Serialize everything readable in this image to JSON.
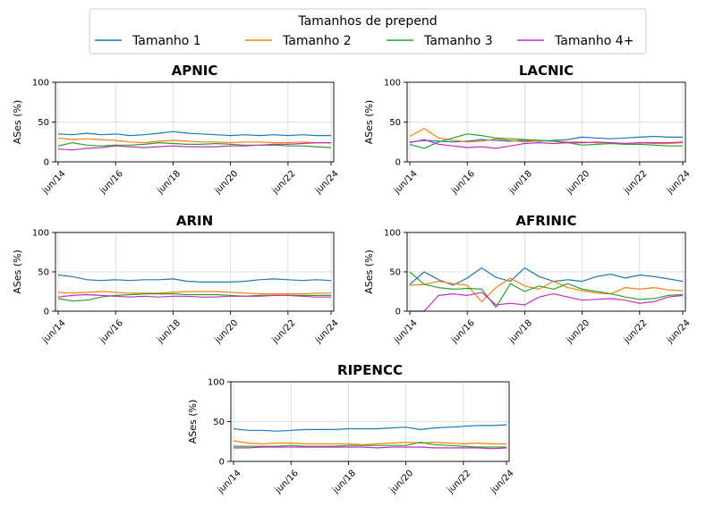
{
  "legend": {
    "title": "Tamanhos de prepend",
    "entries": [
      {
        "label": "Tamanho 1",
        "color": "#1f77b4"
      },
      {
        "label": "Tamanho 2",
        "color": "#ff7f0e"
      },
      {
        "label": "Tamanho 3",
        "color": "#2ca02c"
      },
      {
        "label": "Tamanho 4+",
        "color": "#c02fc0"
      }
    ]
  },
  "chart_data": [
    {
      "type": "line",
      "title": "APNIC",
      "ylabel": "ASes (%)",
      "xlabel": "",
      "ylim": [
        0,
        100
      ],
      "yticks": [
        0,
        50,
        100
      ],
      "xticks": [
        "jun/14",
        "jun/16",
        "jun/18",
        "jun/20",
        "jun/22",
        "jun/24"
      ],
      "grid": true,
      "x": [
        "jun/14",
        "dez/14",
        "jun/15",
        "dez/15",
        "jun/16",
        "dez/16",
        "jun/17",
        "dez/17",
        "jun/18",
        "dez/18",
        "jun/19",
        "dez/19",
        "jun/20",
        "dez/20",
        "jun/21",
        "dez/21",
        "jun/22",
        "dez/22",
        "jun/23",
        "dez/23"
      ],
      "series": [
        {
          "name": "Tamanho 1",
          "values": [
            35,
            34,
            36,
            34,
            35,
            33,
            34,
            36,
            38,
            36,
            35,
            34,
            33,
            34,
            33,
            34,
            33,
            34,
            33,
            33
          ]
        },
        {
          "name": "Tamanho 2",
          "values": [
            30,
            28,
            29,
            28,
            27,
            25,
            24,
            26,
            27,
            26,
            25,
            25,
            24,
            25,
            25,
            24,
            24,
            25,
            24,
            24
          ]
        },
        {
          "name": "Tamanho 3",
          "values": [
            20,
            24,
            21,
            20,
            21,
            21,
            22,
            24,
            23,
            22,
            22,
            23,
            22,
            21,
            21,
            21,
            20,
            20,
            19,
            18
          ]
        },
        {
          "name": "Tamanho 4+",
          "values": [
            16,
            15,
            17,
            18,
            20,
            19,
            18,
            19,
            20,
            19,
            19,
            19,
            20,
            20,
            21,
            22,
            22,
            23,
            24,
            24
          ]
        }
      ]
    },
    {
      "type": "line",
      "title": "LACNIC",
      "ylabel": "ASes (%)",
      "xlabel": "",
      "ylim": [
        0,
        100
      ],
      "yticks": [
        0,
        50,
        100
      ],
      "xticks": [
        "jun/14",
        "jun/16",
        "jun/18",
        "jun/20",
        "jun/22",
        "jun/24"
      ],
      "grid": true,
      "x": [
        "jun/14",
        "dez/14",
        "jun/15",
        "dez/15",
        "jun/16",
        "dez/16",
        "jun/17",
        "dez/17",
        "jun/18",
        "dez/18",
        "jun/19",
        "dez/19",
        "jun/20",
        "dez/20",
        "jun/21",
        "dez/21",
        "jun/22",
        "dez/22",
        "jun/23",
        "dez/23"
      ],
      "series": [
        {
          "name": "Tamanho 1",
          "values": [
            25,
            27,
            26,
            25,
            26,
            28,
            27,
            26,
            27,
            26,
            27,
            28,
            31,
            30,
            29,
            30,
            31,
            32,
            31,
            31
          ]
        },
        {
          "name": "Tamanho 2",
          "values": [
            32,
            42,
            30,
            27,
            25,
            26,
            29,
            27,
            25,
            27,
            26,
            25,
            25,
            24,
            24,
            23,
            24,
            23,
            23,
            24
          ]
        },
        {
          "name": "Tamanho 3",
          "values": [
            22,
            17,
            25,
            30,
            35,
            33,
            30,
            29,
            28,
            27,
            26,
            24,
            21,
            22,
            23,
            22,
            22,
            21,
            20,
            20
          ]
        },
        {
          "name": "Tamanho 4+",
          "values": [
            24,
            28,
            22,
            20,
            18,
            19,
            17,
            20,
            23,
            24,
            23,
            24,
            24,
            25,
            24,
            23,
            24,
            24,
            24,
            25
          ]
        }
      ]
    },
    {
      "type": "line",
      "title": "ARIN",
      "ylabel": "ASes (%)",
      "xlabel": "",
      "ylim": [
        0,
        100
      ],
      "yticks": [
        0,
        50,
        100
      ],
      "xticks": [
        "jun/14",
        "jun/16",
        "jun/18",
        "jun/20",
        "jun/22",
        "jun/24"
      ],
      "grid": true,
      "x": [
        "jun/14",
        "dez/14",
        "jun/15",
        "dez/15",
        "jun/16",
        "dez/16",
        "jun/17",
        "dez/17",
        "jun/18",
        "dez/18",
        "jun/19",
        "dez/19",
        "jun/20",
        "dez/20",
        "jun/21",
        "dez/21",
        "jun/22",
        "dez/22",
        "jun/23",
        "dez/23"
      ],
      "series": [
        {
          "name": "Tamanho 1",
          "values": [
            46,
            44,
            40,
            39,
            40,
            39,
            40,
            40,
            41,
            38,
            37,
            37,
            37,
            38,
            40,
            41,
            40,
            39,
            40,
            39
          ]
        },
        {
          "name": "Tamanho 2",
          "values": [
            24,
            23,
            24,
            25,
            24,
            23,
            23,
            23,
            24,
            25,
            25,
            25,
            24,
            23,
            22,
            22,
            22,
            22,
            23,
            23
          ]
        },
        {
          "name": "Tamanho 3",
          "values": [
            16,
            13,
            14,
            18,
            20,
            21,
            22,
            22,
            22,
            21,
            21,
            21,
            20,
            19,
            20,
            20,
            20,
            20,
            20,
            20
          ]
        },
        {
          "name": "Tamanho 4+",
          "values": [
            18,
            20,
            21,
            20,
            19,
            18,
            19,
            18,
            19,
            19,
            18,
            18,
            19,
            19,
            19,
            20,
            20,
            19,
            18,
            18
          ]
        }
      ]
    },
    {
      "type": "line",
      "title": "AFRINIC",
      "ylabel": "ASes (%)",
      "xlabel": "",
      "ylim": [
        0,
        100
      ],
      "yticks": [
        0,
        50,
        100
      ],
      "xticks": [
        "jun/14",
        "jun/16",
        "jun/18",
        "jun/20",
        "jun/22",
        "jun/24"
      ],
      "grid": true,
      "x": [
        "jun/14",
        "dez/14",
        "jun/15",
        "dez/15",
        "jun/16",
        "dez/16",
        "jun/17",
        "dez/17",
        "jun/18",
        "dez/18",
        "jun/19",
        "dez/19",
        "jun/20",
        "dez/20",
        "jun/21",
        "dez/21",
        "jun/22",
        "dez/22",
        "jun/23",
        "dez/23"
      ],
      "series": [
        {
          "name": "Tamanho 1",
          "values": [
            34,
            50,
            40,
            33,
            42,
            55,
            43,
            38,
            55,
            44,
            38,
            40,
            38,
            44,
            47,
            42,
            46,
            44,
            41,
            38
          ]
        },
        {
          "name": "Tamanho 2",
          "values": [
            33,
            34,
            38,
            35,
            33,
            12,
            30,
            42,
            32,
            28,
            38,
            30,
            26,
            23,
            22,
            30,
            28,
            30,
            27,
            26
          ]
        },
        {
          "name": "Tamanho 3",
          "values": [
            50,
            34,
            30,
            28,
            29,
            28,
            5,
            35,
            25,
            32,
            28,
            35,
            28,
            25,
            22,
            18,
            15,
            16,
            20,
            21
          ]
        },
        {
          "name": "Tamanho 4+",
          "values": [
            0,
            0,
            20,
            22,
            20,
            24,
            8,
            10,
            8,
            18,
            22,
            18,
            14,
            15,
            16,
            14,
            10,
            12,
            18,
            20
          ]
        }
      ]
    },
    {
      "type": "line",
      "title": "RIPENCC",
      "ylabel": "ASes (%)",
      "xlabel": "",
      "ylim": [
        0,
        100
      ],
      "yticks": [
        0,
        50,
        100
      ],
      "xticks": [
        "jun/14",
        "jun/16",
        "jun/18",
        "jun/20",
        "jun/22",
        "jun/24"
      ],
      "grid": true,
      "x": [
        "jun/14",
        "dez/14",
        "jun/15",
        "dez/15",
        "jun/16",
        "dez/16",
        "jun/17",
        "dez/17",
        "jun/18",
        "dez/18",
        "jun/19",
        "dez/19",
        "jun/20",
        "dez/20",
        "jun/21",
        "dez/21",
        "jun/22",
        "dez/22",
        "jun/23",
        "dez/23"
      ],
      "series": [
        {
          "name": "Tamanho 1",
          "values": [
            41,
            39,
            39,
            38,
            39,
            40,
            40,
            40,
            41,
            41,
            41,
            42,
            43,
            40,
            42,
            43,
            44,
            45,
            45,
            46
          ]
        },
        {
          "name": "Tamanho 2",
          "values": [
            26,
            23,
            22,
            23,
            23,
            22,
            22,
            22,
            22,
            21,
            22,
            23,
            24,
            23,
            24,
            23,
            22,
            23,
            22,
            22
          ]
        },
        {
          "name": "Tamanho 3",
          "values": [
            19,
            19,
            19,
            19,
            20,
            19,
            19,
            19,
            20,
            20,
            20,
            20,
            20,
            24,
            21,
            20,
            19,
            18,
            18,
            18
          ]
        },
        {
          "name": "Tamanho 4+",
          "values": [
            17,
            17,
            18,
            18,
            18,
            18,
            18,
            18,
            18,
            18,
            17,
            18,
            18,
            18,
            17,
            17,
            17,
            17,
            16,
            17
          ]
        }
      ]
    }
  ]
}
